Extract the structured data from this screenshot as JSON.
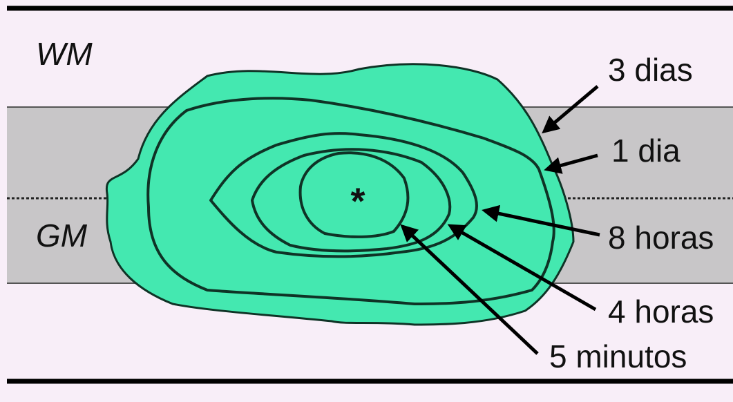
{
  "regions": {
    "white_matter": "WM",
    "gray_matter": "GM"
  },
  "center_mark": "*",
  "time_labels": [
    "3 dias",
    "1 dia",
    "8 horas",
    "4 horas",
    "5 minutos"
  ]
}
